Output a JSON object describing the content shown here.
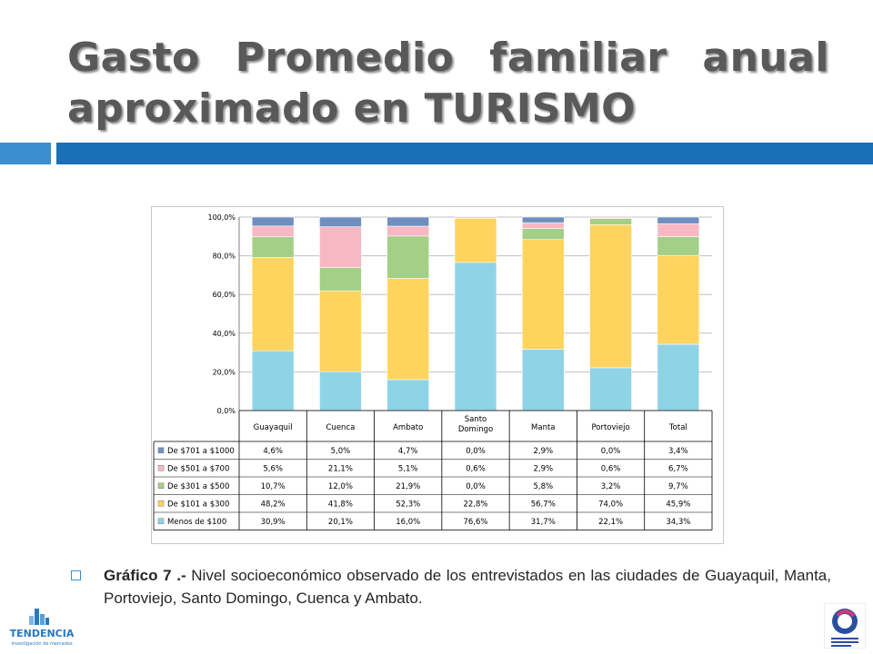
{
  "slide": {
    "title": "Gasto Promedio familiar anual aproximado en TURISMO",
    "caption_bold": "Gráfico 7 .-",
    "caption_text": " Nivel socioeconómico observado de los entrevistados en las ciudades de Guayaquil, Manta, Portoviejo, Santo Domingo, Cuenca y Ambato.",
    "logo_left_text": "TENDENCIA",
    "logo_left_sub": "investigación de mercados"
  },
  "chart_data": {
    "type": "bar",
    "stacked": true,
    "categories": [
      "Guayaquil",
      "Cuenca",
      "Ambato",
      "Santo Domingo",
      "Manta",
      "Portoviejo",
      "Total"
    ],
    "yticks": [
      "0,0%",
      "20,0%",
      "40,0%",
      "60,0%",
      "80,0%",
      "100,0%"
    ],
    "ylim": [
      0,
      100
    ],
    "grid": true,
    "legend": "data-table-left",
    "series": [
      {
        "name": "Menos de $100",
        "color": "#8fd3e6",
        "values": [
          30.9,
          20.1,
          16.0,
          76.6,
          31.7,
          22.1,
          34.3
        ],
        "labels": [
          "30,9%",
          "20,1%",
          "16,0%",
          "76,6%",
          "31,7%",
          "22,1%",
          "34,3%"
        ]
      },
      {
        "name": "De $101  a $300",
        "color": "#ffd45e",
        "values": [
          48.2,
          41.8,
          52.3,
          22.8,
          56.7,
          74.0,
          45.9
        ],
        "labels": [
          "48,2%",
          "41,8%",
          "52,3%",
          "22,8%",
          "56,7%",
          "74,0%",
          "45,9%"
        ]
      },
      {
        "name": "De $301  a $500",
        "color": "#a3cf86",
        "values": [
          10.7,
          12.0,
          21.9,
          0.0,
          5.8,
          3.2,
          9.7
        ],
        "labels": [
          "10,7%",
          "12,0%",
          "21,9%",
          "0,0%",
          "5,8%",
          "3,2%",
          "9,7%"
        ]
      },
      {
        "name": "De $501  a $700",
        "color": "#f7b8c4",
        "values": [
          5.6,
          21.1,
          5.1,
          0.6,
          2.9,
          0.6,
          6.7
        ],
        "labels": [
          "5,6%",
          "21,1%",
          "5,1%",
          "0,6%",
          "2,9%",
          "0,6%",
          "6,7%"
        ]
      },
      {
        "name": "De $701  a $1000",
        "color": "#6e8fbf",
        "values": [
          4.6,
          5.0,
          4.7,
          0.0,
          2.9,
          0.0,
          3.4
        ],
        "labels": [
          "4,6%",
          "5,0%",
          "4,7%",
          "0,0%",
          "2,9%",
          "0,0%",
          "3,4%"
        ]
      }
    ]
  }
}
